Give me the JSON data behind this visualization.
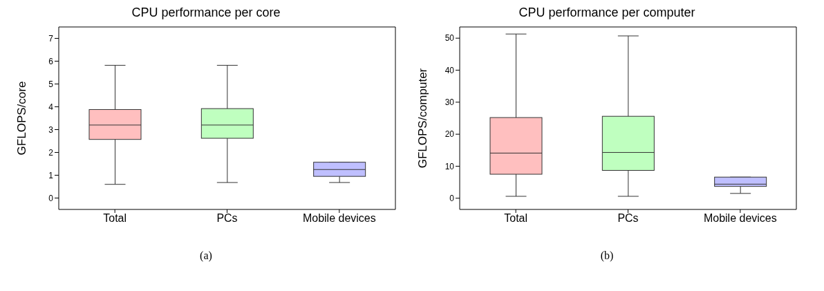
{
  "chart_data": [
    {
      "type": "box",
      "title": "CPU performance per core",
      "ylabel": "GFLOPS/core",
      "categories": [
        "Total",
        "PCs",
        "Mobile devices"
      ],
      "colors": [
        "#ffbfbf",
        "#bfffbf",
        "#bfbfff"
      ],
      "boxes": [
        {
          "low": 0.6,
          "q1": 2.57,
          "median": 3.2,
          "q3": 3.88,
          "high": 5.82
        },
        {
          "low": 0.68,
          "q1": 2.62,
          "median": 3.2,
          "q3": 3.92,
          "high": 5.82
        },
        {
          "low": 0.68,
          "q1": 0.95,
          "median": 1.25,
          "q3": 1.57,
          "high": 1.57
        }
      ],
      "ylim": [
        -0.5,
        7.5
      ],
      "yticks": [
        0,
        1,
        2,
        3,
        4,
        5,
        6,
        7
      ],
      "annotations": [
        "(a)"
      ]
    },
    {
      "type": "box",
      "title": "CPU performance per computer",
      "ylabel": "GFLOPS/computer",
      "categories": [
        "Total",
        "PCs",
        "Mobile devices"
      ],
      "colors": [
        "#ffbfbf",
        "#bfffbf",
        "#bfbfff"
      ],
      "boxes": [
        {
          "low": 0.6,
          "q1": 7.5,
          "median": 14.1,
          "q3": 25.2,
          "high": 51.3
        },
        {
          "low": 0.6,
          "q1": 8.7,
          "median": 14.3,
          "q3": 25.6,
          "high": 50.7
        },
        {
          "low": 1.5,
          "q1": 3.7,
          "median": 4.4,
          "q3": 6.6,
          "high": 6.6
        }
      ],
      "ylim": [
        -3.5,
        53.5
      ],
      "yticks": [
        0,
        10,
        20,
        30,
        40,
        50
      ],
      "annotations": [
        "(b)"
      ]
    }
  ]
}
